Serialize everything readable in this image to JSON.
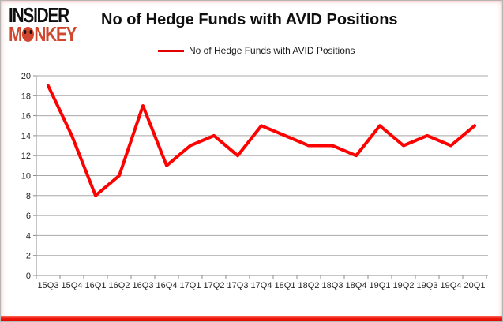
{
  "logo": {
    "insider": "INSIDER",
    "monkey": "MONKEY"
  },
  "colors": {
    "line": "#ff0000",
    "legend_swatch": "#e00000",
    "logo_red": "#d1472e",
    "grid": "#a8a8a8",
    "axis": "#8c8c8c",
    "axis_text": "#262626",
    "bottom_bar_red": "#ee1408"
  },
  "chart_data": {
    "type": "line",
    "title": "No of Hedge Funds with AVID Positions",
    "categories": [
      "15Q3",
      "15Q4",
      "16Q1",
      "16Q2",
      "16Q3",
      "16Q4",
      "17Q1",
      "17Q2",
      "17Q3",
      "17Q4",
      "18Q1",
      "18Q2",
      "18Q3",
      "18Q4",
      "19Q1",
      "19Q2",
      "19Q3",
      "19Q4",
      "20Q1"
    ],
    "series": [
      {
        "name": "No of Hedge Funds with AVID Positions",
        "values": [
          19,
          14,
          8,
          10,
          17,
          11,
          13,
          14,
          12,
          15,
          14,
          13,
          13,
          12,
          15,
          13,
          14,
          13,
          15
        ]
      }
    ],
    "xlabel": "",
    "ylabel": "",
    "ylim": [
      0,
      20
    ],
    "ytick_step": 2,
    "grid": true,
    "legend_position": "top-center"
  }
}
